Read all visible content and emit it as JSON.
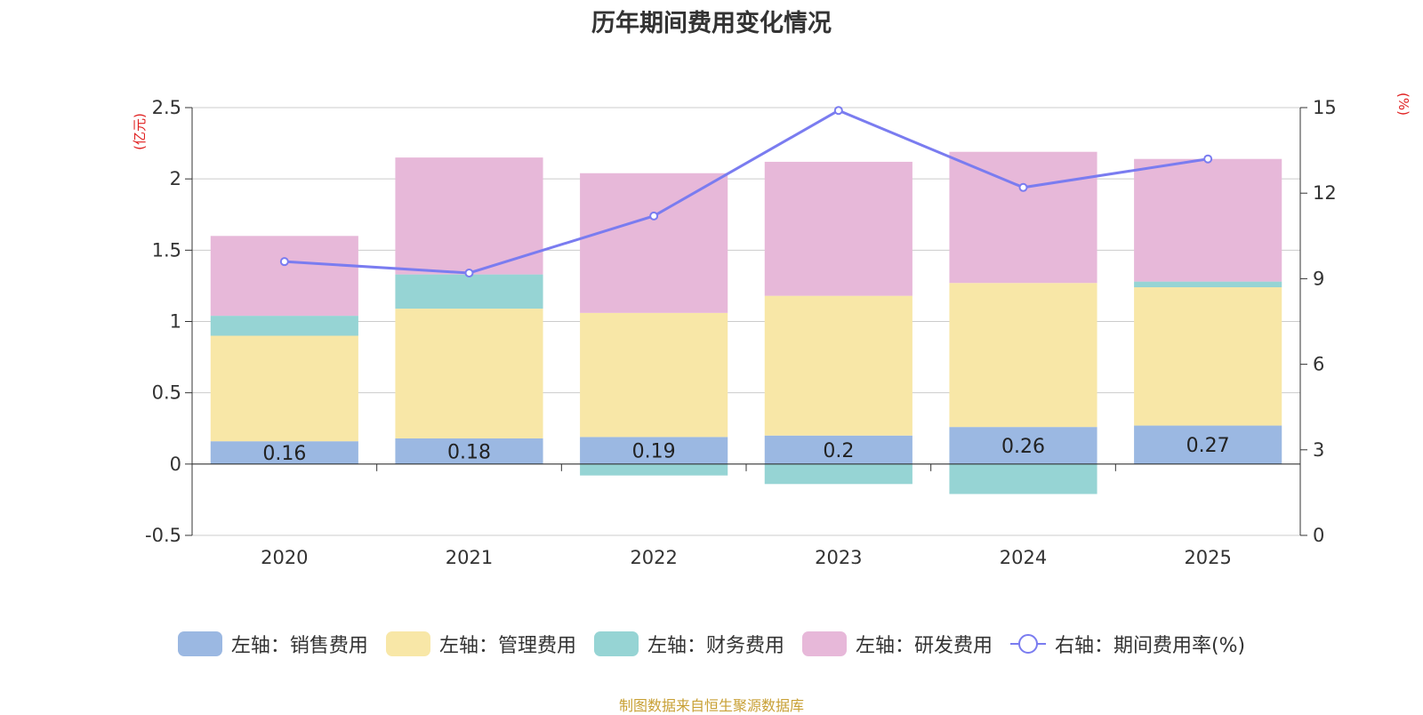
{
  "chart_data": {
    "type": "bar",
    "stacked": true,
    "title": "历年期间费用变化情况",
    "left_axis_label": "(亿元)",
    "right_axis_label": "(%)",
    "categories": [
      "2020",
      "2021",
      "2022",
      "2023",
      "2024",
      "2025"
    ],
    "ylim_left": [
      -0.5,
      2.5
    ],
    "yticks_left": [
      -0.5,
      0,
      0.5,
      1,
      1.5,
      2,
      2.5
    ],
    "ylim_right": [
      0,
      15
    ],
    "yticks_right": [
      0,
      3,
      6,
      9,
      12,
      15
    ],
    "series": [
      {
        "name": "左轴：销售费用",
        "axis": "left",
        "color": "#9bb8e2",
        "values": [
          0.16,
          0.18,
          0.19,
          0.2,
          0.26,
          0.27
        ],
        "labels": [
          "0.16",
          "0.18",
          "0.19",
          "0.2",
          "0.26",
          "0.27"
        ]
      },
      {
        "name": "左轴：管理费用",
        "axis": "left",
        "color": "#f8e7a7",
        "values": [
          0.74,
          0.91,
          0.87,
          0.98,
          1.01,
          0.97
        ]
      },
      {
        "name": "左轴：财务费用",
        "axis": "left",
        "color": "#96d4d4",
        "values": [
          0.14,
          0.24,
          -0.08,
          -0.14,
          -0.21,
          0.04
        ]
      },
      {
        "name": "左轴：研发费用",
        "axis": "left",
        "color": "#e7b8d9",
        "values": [
          0.56,
          0.82,
          0.98,
          0.94,
          0.92,
          0.86
        ]
      },
      {
        "name": "右轴：期间费用率(%)",
        "axis": "right",
        "type": "line",
        "color": "#7a7cf0",
        "values": [
          9.6,
          9.2,
          11.2,
          14.9,
          12.2,
          13.2
        ]
      }
    ],
    "grid": true,
    "legend_position": "bottom"
  },
  "source_note": "制图数据来自恒生聚源数据库"
}
